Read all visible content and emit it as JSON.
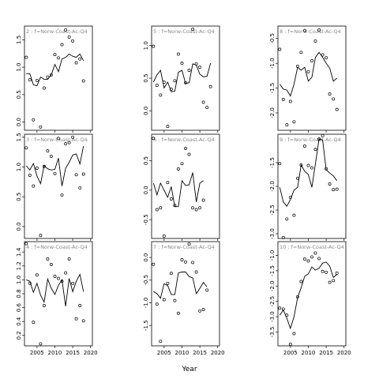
{
  "figure": {
    "xlabel": "Year"
  },
  "chart_data": [
    {
      "type": "scatter",
      "title": "2 : f=Norw-Coast-Ac-Q4",
      "ylim": [
        -0.15,
        1.75
      ],
      "yticks": [
        0.0,
        0.5,
        1.0,
        1.5
      ],
      "xlim": [
        2001.5,
        2020.5
      ],
      "xticks": [
        2005,
        2010,
        2015,
        2020
      ],
      "points": [
        [
          2002,
          1.18
        ],
        [
          2003,
          0.77
        ],
        [
          2004,
          0.04
        ],
        [
          2005,
          0.76
        ],
        [
          2006,
          -0.09
        ],
        [
          2007,
          0.62
        ],
        [
          2008,
          0.82
        ],
        [
          2009,
          0.86
        ],
        [
          2010,
          1.23
        ],
        [
          2011,
          1.17
        ],
        [
          2012,
          1.41
        ],
        [
          2013,
          1.68
        ],
        [
          2014,
          1.55
        ],
        [
          2015,
          1.48
        ],
        [
          2016,
          1.08
        ],
        [
          2017,
          1.15
        ],
        [
          2018,
          0.75
        ]
      ],
      "line": [
        [
          2002,
          0.88
        ],
        [
          2003,
          0.88
        ],
        [
          2004,
          0.68
        ],
        [
          2005,
          0.66
        ],
        [
          2006,
          0.82
        ],
        [
          2007,
          0.78
        ],
        [
          2008,
          0.78
        ],
        [
          2009,
          0.86
        ],
        [
          2010,
          1.05
        ],
        [
          2011,
          0.92
        ],
        [
          2012,
          1.15
        ],
        [
          2013,
          1.18
        ],
        [
          2014,
          1.24
        ],
        [
          2015,
          1.2
        ],
        [
          2016,
          1.18
        ],
        [
          2017,
          1.24
        ],
        [
          2018,
          1.12
        ]
      ]
    },
    {
      "type": "scatter",
      "title": "5 : f=Norw-Coast-Ac-Q4",
      "ylim": [
        -0.3,
        1.3
      ],
      "yticks": [
        0.0,
        0.5,
        1.0
      ],
      "xlim": [
        2001.5,
        2020.5
      ],
      "xticks": [
        2005,
        2010,
        2015,
        2020
      ],
      "points": [
        [
          2002,
          0.99
        ],
        [
          2003,
          0.39
        ],
        [
          2004,
          0.24
        ],
        [
          2005,
          0.44
        ],
        [
          2006,
          -0.24
        ],
        [
          2007,
          0.33
        ],
        [
          2008,
          0.46
        ],
        [
          2009,
          0.87
        ],
        [
          2010,
          0.73
        ],
        [
          2011,
          0.43
        ],
        [
          2012,
          0.62
        ],
        [
          2013,
          1.25
        ],
        [
          2014,
          0.72
        ],
        [
          2015,
          0.67
        ],
        [
          2016,
          0.13
        ],
        [
          2017,
          0.05
        ],
        [
          2018,
          0.37
        ]
      ],
      "line": [
        [
          2002,
          0.44
        ],
        [
          2003,
          0.55
        ],
        [
          2004,
          0.62
        ],
        [
          2005,
          0.35
        ],
        [
          2006,
          0.44
        ],
        [
          2007,
          0.29
        ],
        [
          2008,
          0.3
        ],
        [
          2009,
          0.59
        ],
        [
          2010,
          0.62
        ],
        [
          2011,
          0.42
        ],
        [
          2012,
          0.43
        ],
        [
          2013,
          0.72
        ],
        [
          2014,
          0.7
        ],
        [
          2015,
          0.56
        ],
        [
          2016,
          0.52
        ],
        [
          2017,
          0.53
        ],
        [
          2018,
          0.73
        ]
      ]
    },
    {
      "type": "scatter",
      "title": "8 : f=Norw-Coast-Ac-Q4",
      "ylim": [
        -2.35,
        -0.25
      ],
      "yticks": [
        -2.0,
        -1.5,
        -1.0,
        -0.5
      ],
      "xlim": [
        2001.5,
        2020.5
      ],
      "xticks": [
        2005,
        2010,
        2015,
        2020
      ],
      "points": [
        [
          2002,
          -0.72
        ],
        [
          2003,
          -1.73
        ],
        [
          2004,
          -2.24
        ],
        [
          2005,
          -1.77
        ],
        [
          2006,
          -2.18
        ],
        [
          2007,
          -1.06
        ],
        [
          2008,
          -0.78
        ],
        [
          2009,
          -0.34
        ],
        [
          2010,
          -1.17
        ],
        [
          2011,
          -0.95
        ],
        [
          2012,
          -0.55
        ],
        [
          2013,
          -0.33
        ],
        [
          2014,
          -0.83
        ],
        [
          2015,
          -0.89
        ],
        [
          2016,
          -1.62
        ],
        [
          2017,
          -1.72
        ],
        [
          2018,
          -1.93
        ]
      ],
      "line": [
        [
          2002,
          -1.42
        ],
        [
          2003,
          -1.52
        ],
        [
          2004,
          -1.54
        ],
        [
          2005,
          -1.66
        ],
        [
          2006,
          -1.42
        ],
        [
          2007,
          -1.08
        ],
        [
          2008,
          -1.14
        ],
        [
          2009,
          -1.08
        ],
        [
          2010,
          -1.36
        ],
        [
          2011,
          -1.28
        ],
        [
          2012,
          -0.88
        ],
        [
          2013,
          -0.78
        ],
        [
          2014,
          -0.88
        ],
        [
          2015,
          -1.0
        ],
        [
          2016,
          -1.1
        ],
        [
          2017,
          -1.36
        ],
        [
          2018,
          -1.3
        ]
      ]
    },
    {
      "type": "scatter",
      "title": "3 : f=Norw-Coast-Ac-Q4",
      "ylim": [
        -0.2,
        1.55
      ],
      "yticks": [
        0.0,
        0.5,
        1.0,
        1.5
      ],
      "xlim": [
        2001.5,
        2020.5
      ],
      "xticks": [
        2005,
        2010,
        2015,
        2020
      ],
      "points": [
        [
          2002,
          1.32
        ],
        [
          2003,
          0.86
        ],
        [
          2004,
          0.68
        ],
        [
          2005,
          0.98
        ],
        [
          2006,
          -0.15
        ],
        [
          2007,
          1.01
        ],
        [
          2008,
          1.27
        ],
        [
          2009,
          1.18
        ],
        [
          2010,
          0.89
        ],
        [
          2011,
          1.48
        ],
        [
          2012,
          0.53
        ],
        [
          2013,
          1.39
        ],
        [
          2014,
          1.41
        ],
        [
          2015,
          1.5
        ],
        [
          2016,
          0.87
        ],
        [
          2017,
          0.65
        ],
        [
          2018,
          0.88
        ]
      ],
      "line": [
        [
          2002,
          1.02
        ],
        [
          2003,
          0.95
        ],
        [
          2004,
          1.06
        ],
        [
          2005,
          0.85
        ],
        [
          2006,
          0.72
        ],
        [
          2007,
          1.02
        ],
        [
          2008,
          0.97
        ],
        [
          2009,
          0.95
        ],
        [
          2010,
          0.96
        ],
        [
          2011,
          1.15
        ],
        [
          2012,
          0.68
        ],
        [
          2013,
          0.98
        ],
        [
          2014,
          1.08
        ],
        [
          2015,
          1.2
        ],
        [
          2016,
          1.22
        ],
        [
          2017,
          1.05
        ],
        [
          2018,
          1.35
        ]
      ]
    },
    {
      "type": "scatter",
      "title": "6 : f=Norw-Coast-Ac-Q4",
      "ylim": [
        -0.82,
        0.95
      ],
      "yticks": [
        -0.5,
        0.0,
        0.5
      ],
      "xlim": [
        2001.5,
        2020.5
      ],
      "xticks": [
        2005,
        2010,
        2015,
        2020
      ],
      "points": [
        [
          2002,
          0.88
        ],
        [
          2003,
          -0.33
        ],
        [
          2004,
          -0.3
        ],
        [
          2005,
          -0.78
        ],
        [
          2006,
          0.13
        ],
        [
          2007,
          -0.15
        ],
        [
          2008,
          -0.26
        ],
        [
          2009,
          0.36
        ],
        [
          2010,
          0.45
        ],
        [
          2011,
          0.71
        ],
        [
          2012,
          0.61
        ],
        [
          2013,
          -0.3
        ],
        [
          2014,
          -0.33
        ],
        [
          2015,
          -0.3
        ],
        [
          2016,
          -0.17
        ]
      ],
      "line": [
        [
          2002,
          0.12
        ],
        [
          2003,
          -0.08
        ],
        [
          2004,
          0.12
        ],
        [
          2005,
          0.0
        ],
        [
          2006,
          -0.12
        ],
        [
          2007,
          0.06
        ],
        [
          2008,
          -0.28
        ],
        [
          2009,
          -0.28
        ],
        [
          2010,
          0.16
        ],
        [
          2011,
          0.08
        ],
        [
          2012,
          0.09
        ],
        [
          2013,
          0.3
        ],
        [
          2014,
          -0.2
        ],
        [
          2015,
          0.12
        ],
        [
          2016,
          0.16
        ]
      ]
    },
    {
      "type": "scatter",
      "title": "9 : f=Norw-Coast-Ac-Q4",
      "ylim": [
        -3.1,
        -0.9
      ],
      "yticks": [
        -3.0,
        -2.5,
        -2.0,
        -1.5
      ],
      "xlim": [
        2001.5,
        2020.5
      ],
      "xticks": [
        2005,
        2010,
        2015,
        2020
      ],
      "points": [
        [
          2002,
          -1.52
        ],
        [
          2003,
          -3.08
        ],
        [
          2004,
          -2.69
        ],
        [
          2005,
          -2.23
        ],
        [
          2006,
          -2.61
        ],
        [
          2007,
          -1.83
        ],
        [
          2008,
          -1.55
        ],
        [
          2009,
          -1.15
        ],
        [
          2010,
          -1.56
        ],
        [
          2011,
          -1.61
        ],
        [
          2012,
          -1.22
        ],
        [
          2013,
          -1.0
        ],
        [
          2014,
          -0.93
        ],
        [
          2015,
          -1.63
        ],
        [
          2016,
          -1.95
        ],
        [
          2017,
          -2.07
        ],
        [
          2018,
          -2.06
        ]
      ],
      "line": [
        [
          2002,
          -2.02
        ],
        [
          2003,
          -2.33
        ],
        [
          2004,
          -2.42
        ],
        [
          2005,
          -2.28
        ],
        [
          2006,
          -2.08
        ],
        [
          2007,
          -2.02
        ],
        [
          2008,
          -1.55
        ],
        [
          2009,
          -1.68
        ],
        [
          2010,
          -1.75
        ],
        [
          2011,
          -2.02
        ],
        [
          2012,
          -1.52
        ],
        [
          2013,
          -1.0
        ],
        [
          2014,
          -1.02
        ],
        [
          2015,
          -1.65
        ],
        [
          2016,
          -1.72
        ],
        [
          2017,
          -1.78
        ],
        [
          2018,
          -1.88
        ]
      ]
    },
    {
      "type": "scatter",
      "title": "4 : f=Norw-Coast-Ac-Q4",
      "ylim": [
        0.05,
        1.55
      ],
      "yticks": [
        0.2,
        0.4,
        0.6,
        0.8,
        1.0,
        1.2,
        1.4
      ],
      "xlim": [
        2001.5,
        2020.5
      ],
      "xticks": [
        2005,
        2010,
        2015,
        2020
      ],
      "points": [
        [
          2002,
          1.52
        ],
        [
          2003,
          0.95
        ],
        [
          2004,
          0.39
        ],
        [
          2005,
          1.07
        ],
        [
          2006,
          0.08
        ],
        [
          2007,
          0.63
        ],
        [
          2008,
          1.3
        ],
        [
          2009,
          1.22
        ],
        [
          2010,
          1.05
        ],
        [
          2011,
          1.02
        ],
        [
          2012,
          0.98
        ],
        [
          2013,
          1.1
        ],
        [
          2014,
          1.3
        ],
        [
          2015,
          0.95
        ],
        [
          2016,
          0.44
        ],
        [
          2017,
          0.63
        ],
        [
          2018,
          0.41
        ]
      ],
      "line": [
        [
          2002,
          1.0
        ],
        [
          2003,
          0.98
        ],
        [
          2004,
          0.82
        ],
        [
          2005,
          0.95
        ],
        [
          2006,
          0.78
        ],
        [
          2007,
          0.68
        ],
        [
          2008,
          1.01
        ],
        [
          2009,
          0.88
        ],
        [
          2010,
          0.79
        ],
        [
          2011,
          0.92
        ],
        [
          2012,
          1.0
        ],
        [
          2013,
          0.62
        ],
        [
          2014,
          1.02
        ],
        [
          2015,
          0.83
        ],
        [
          2016,
          0.98
        ],
        [
          2017,
          1.08
        ],
        [
          2018,
          0.83
        ]
      ]
    },
    {
      "type": "scatter",
      "title": "7 : f=Norw-Coast-Ac-Q4",
      "ylim": [
        -1.95,
        0.35
      ],
      "yticks": [
        -1.5,
        -1.0,
        -0.5,
        0.0
      ],
      "xlim": [
        2001.5,
        2020.5
      ],
      "xticks": [
        2005,
        2010,
        2015,
        2020
      ],
      "points": [
        [
          2002,
          -0.15
        ],
        [
          2003,
          -1.03
        ],
        [
          2004,
          -1.85
        ],
        [
          2005,
          -0.93
        ],
        [
          2006,
          -0.57
        ],
        [
          2007,
          -0.35
        ],
        [
          2008,
          -0.95
        ],
        [
          2009,
          -1.23
        ],
        [
          2010,
          -0.05
        ],
        [
          2011,
          -0.1
        ],
        [
          2012,
          0.3
        ],
        [
          2013,
          -0.11
        ],
        [
          2014,
          -0.32
        ],
        [
          2015,
          -1.18
        ],
        [
          2016,
          -1.15
        ],
        [
          2017,
          -0.72
        ]
      ],
      "line": [
        [
          2002,
          -0.75
        ],
        [
          2003,
          -0.8
        ],
        [
          2004,
          -0.9
        ],
        [
          2005,
          -0.58
        ],
        [
          2006,
          -0.62
        ],
        [
          2007,
          -0.82
        ],
        [
          2008,
          -0.82
        ],
        [
          2009,
          -0.34
        ],
        [
          2010,
          -0.32
        ],
        [
          2011,
          -0.32
        ],
        [
          2012,
          -0.42
        ],
        [
          2013,
          -0.45
        ],
        [
          2014,
          -0.8
        ],
        [
          2015,
          -0.68
        ],
        [
          2016,
          -0.55
        ],
        [
          2017,
          -0.65
        ]
      ]
    },
    {
      "type": "scatter",
      "title": "10 : f=Norw-Coast-Ac-Q4",
      "ylim": [
        -3.95,
        -0.55
      ],
      "yticks": [
        -3.5,
        -3.0,
        -2.5,
        -2.0,
        -1.5,
        -1.0
      ],
      "xlim": [
        2001.5,
        2020.5
      ],
      "xticks": [
        2005,
        2010,
        2015,
        2020
      ],
      "points": [
        [
          2002,
          -2.72
        ],
        [
          2003,
          -2.75
        ],
        [
          2004,
          -2.95
        ],
        [
          2005,
          -3.9
        ],
        [
          2006,
          -3.55
        ],
        [
          2007,
          -2.35
        ],
        [
          2008,
          -1.85
        ],
        [
          2009,
          -1.12
        ],
        [
          2010,
          -1.18
        ],
        [
          2011,
          -1.05
        ],
        [
          2012,
          -0.92
        ],
        [
          2013,
          -1.1
        ],
        [
          2014,
          -1.52
        ],
        [
          2015,
          -1.55
        ],
        [
          2016,
          -1.88
        ],
        [
          2017,
          -1.82
        ],
        [
          2018,
          -1.58
        ]
      ],
      "line": [
        [
          2002,
          -2.95
        ],
        [
          2003,
          -2.78
        ],
        [
          2004,
          -3.05
        ],
        [
          2005,
          -3.38
        ],
        [
          2006,
          -3.0
        ],
        [
          2007,
          -2.38
        ],
        [
          2008,
          -2.05
        ],
        [
          2009,
          -1.68
        ],
        [
          2010,
          -1.6
        ],
        [
          2011,
          -1.38
        ],
        [
          2012,
          -1.48
        ],
        [
          2013,
          -1.42
        ],
        [
          2014,
          -1.25
        ],
        [
          2015,
          -1.22
        ],
        [
          2016,
          -1.35
        ],
        [
          2017,
          -1.72
        ],
        [
          2018,
          -1.62
        ]
      ]
    }
  ]
}
